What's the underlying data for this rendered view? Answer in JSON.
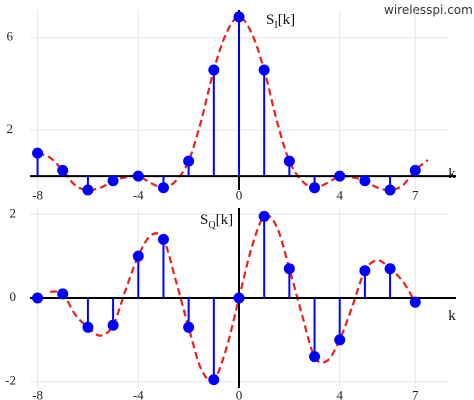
{
  "watermark": "wirelesspi.com",
  "colors": {
    "stem": "#0000ff",
    "marker": "#0000ff",
    "curve": "#e8201e",
    "axis": "#000000",
    "grid": "#e6e6e6"
  },
  "chart_data": [
    {
      "type": "stem",
      "ylabel_main": "S",
      "ylabel_sub": "I",
      "ylabel_tail": "[k]",
      "xlabel": "k",
      "xlim": [
        -8.3,
        8.3
      ],
      "ylim": [
        -0.6,
        7.2
      ],
      "grid": true,
      "xticks": [
        -8,
        -4,
        0,
        4,
        7
      ],
      "xtick_labels": [
        "-8",
        "-4",
        "0",
        "4",
        "7"
      ],
      "yticks": [
        2,
        6
      ],
      "ytick_labels": [
        "2",
        "6"
      ],
      "samples": {
        "k": [
          -8,
          -7,
          -6,
          -5,
          -4,
          -3,
          -2,
          -1,
          0,
          1,
          2,
          3,
          4,
          5,
          6,
          7
        ],
        "values": [
          1.0,
          0.25,
          -0.6,
          -0.2,
          0.0,
          -0.5,
          0.65,
          4.6,
          6.9,
          4.6,
          0.65,
          -0.5,
          0.0,
          -0.2,
          -0.6,
          0.25
        ]
      },
      "curve": {
        "x": [
          -8,
          -7.5,
          -7,
          -6.5,
          -6,
          -5.5,
          -5,
          -4.5,
          -4,
          -3.5,
          -3,
          -2.5,
          -2,
          -1.5,
          -1,
          -0.5,
          0,
          0.5,
          1,
          1.5,
          2,
          2.5,
          3,
          3.5,
          4,
          4.5,
          5,
          5.5,
          6,
          6.5,
          7,
          7.5
        ],
        "y": [
          1.0,
          0.8,
          0.25,
          -0.4,
          -0.6,
          -0.5,
          -0.2,
          -0.05,
          0.0,
          -0.3,
          -0.5,
          -0.2,
          0.65,
          2.4,
          4.6,
          6.2,
          6.9,
          6.2,
          4.6,
          2.4,
          0.65,
          -0.2,
          -0.5,
          -0.3,
          0.0,
          -0.05,
          -0.2,
          -0.5,
          -0.6,
          -0.4,
          0.25,
          0.7
        ]
      }
    },
    {
      "type": "stem",
      "ylabel_main": "S",
      "ylabel_sub": "Q",
      "ylabel_tail": "[k]",
      "xlabel": "k",
      "xlim": [
        -8.3,
        8.3
      ],
      "ylim": [
        -2.15,
        2.15
      ],
      "grid": true,
      "xticks": [
        -8,
        -4,
        0,
        4,
        7
      ],
      "xtick_labels": [
        "-8",
        "-4",
        "0",
        "4",
        "7"
      ],
      "yticks": [
        -2,
        0,
        2
      ],
      "ytick_labels": [
        "-2",
        "0",
        "2"
      ],
      "samples": {
        "k": [
          -8,
          -7,
          -6,
          -5,
          -4,
          -3,
          -2,
          -1,
          0,
          1,
          2,
          3,
          4,
          5,
          6,
          7
        ],
        "values": [
          0.0,
          0.1,
          -0.7,
          -0.65,
          1.0,
          1.4,
          -0.7,
          -1.95,
          0.0,
          1.95,
          0.7,
          -1.4,
          -1.0,
          0.65,
          0.7,
          -0.1
        ]
      },
      "curve": {
        "x": [
          -7.5,
          -7,
          -6.5,
          -6,
          -5.5,
          -5,
          -4.5,
          -4,
          -3.5,
          -3,
          -2.5,
          -2,
          -1.5,
          -1,
          -0.5,
          0,
          0.5,
          1,
          1.5,
          2,
          2.5,
          3,
          3.5,
          4,
          4.5,
          5,
          5.5,
          6,
          6.5,
          7
        ],
        "y": [
          0.15,
          0.1,
          -0.4,
          -0.7,
          -0.9,
          -0.65,
          0.2,
          1.0,
          1.5,
          1.4,
          0.4,
          -0.7,
          -1.7,
          -1.95,
          -1.2,
          0.0,
          1.2,
          1.95,
          1.7,
          0.7,
          -0.4,
          -1.4,
          -1.5,
          -1.0,
          -0.2,
          0.65,
          0.9,
          0.7,
          0.4,
          -0.1
        ]
      }
    }
  ]
}
